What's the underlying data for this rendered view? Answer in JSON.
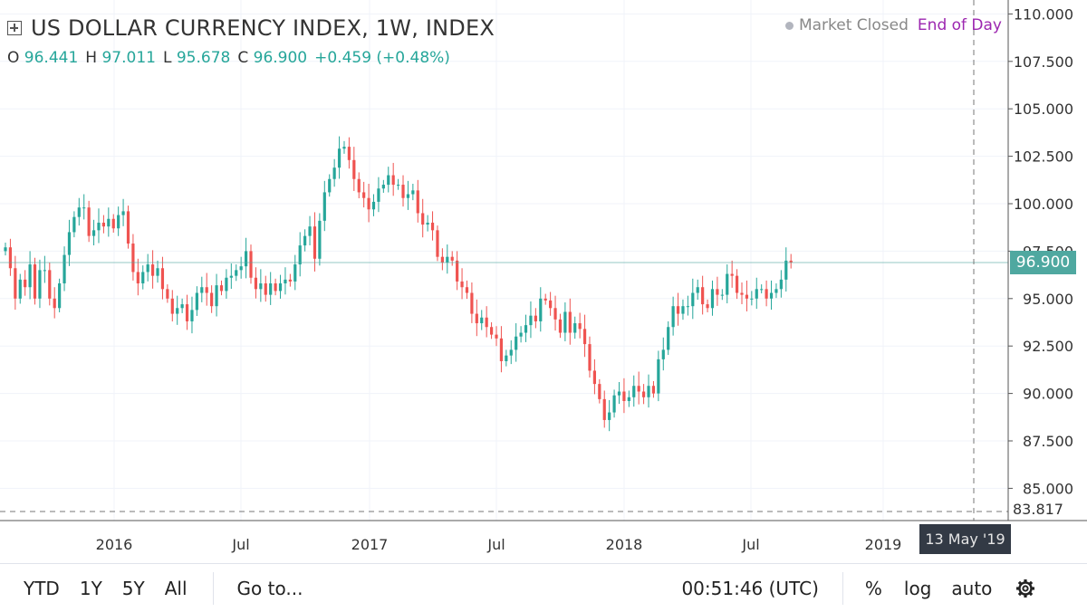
{
  "header": {
    "title": "US DOLLAR CURRENCY INDEX, 1W, INDEX",
    "ohlc": {
      "o_label": "O",
      "o_value": "96.441",
      "h_label": "H",
      "h_value": "97.011",
      "l_label": "L",
      "l_value": "95.678",
      "c_label": "C",
      "c_value": "96.900",
      "change": "+0.459 (+0.48%)"
    },
    "status_closed": "Market Closed",
    "status_eod": "End of Day"
  },
  "price_axis": {
    "ticks": [
      "110.000",
      "107.500",
      "105.000",
      "102.500",
      "100.000",
      "97.500",
      "95.000",
      "92.500",
      "90.000",
      "87.500",
      "85.000"
    ],
    "current_price": "96.900",
    "low_marker": "83.817"
  },
  "time_axis": {
    "ticks": [
      "2016",
      "Jul",
      "2017",
      "Jul",
      "2018",
      "Jul",
      "2019"
    ],
    "crosshair_date": "13 May '19"
  },
  "toolbar": {
    "ranges": [
      "YTD",
      "1Y",
      "5Y",
      "All"
    ],
    "goto": "Go to...",
    "clock": "00:51:46 (UTC)",
    "percent": "%",
    "log": "log",
    "auto": "auto"
  },
  "colors": {
    "up": "#26a69a",
    "down": "#ef5350",
    "last_price": "#4fa8a0",
    "eod": "#9c27b0"
  },
  "chart_data": {
    "type": "candlestick",
    "title": "US DOLLAR CURRENCY INDEX, 1W, INDEX",
    "ylim": [
      83.817,
      110.0
    ],
    "y_ticks": [
      110,
      107.5,
      105,
      102.5,
      100,
      97.5,
      95,
      92.5,
      90,
      87.5,
      85
    ],
    "x_ticks": [
      "2016",
      "Jul",
      "2017",
      "Jul",
      "2018",
      "Jul",
      "2019"
    ],
    "last_close": 96.9,
    "closes": [
      97.7,
      96.6,
      95.0,
      96.0,
      95.6,
      96.8,
      95.0,
      96.5,
      96.5,
      95.0,
      94.5,
      95.8,
      97.3,
      98.5,
      99.3,
      99.8,
      99.8,
      98.3,
      98.6,
      99.0,
      98.8,
      99.2,
      98.7,
      99.4,
      99.6,
      97.9,
      96.4,
      95.8,
      96.4,
      96.8,
      96.2,
      96.6,
      95.5,
      95.0,
      94.2,
      94.5,
      94.7,
      93.8,
      94.4,
      95.3,
      95.6,
      95.3,
      94.6,
      95.7,
      95.4,
      96.1,
      96.2,
      96.5,
      96.7,
      97.5,
      96.1,
      95.5,
      95.8,
      95.2,
      95.8,
      95.4,
      95.8,
      96.0,
      95.9,
      96.8,
      97.8,
      98.3,
      98.8,
      97.1,
      99.1,
      100.6,
      101.3,
      101.9,
      102.9,
      103.0,
      102.3,
      101.3,
      100.6,
      100.3,
      99.7,
      100.1,
      100.8,
      101.0,
      101.5,
      101.0,
      101.0,
      100.3,
      100.5,
      100.7,
      99.5,
      98.9,
      99.0,
      98.6,
      97.2,
      96.9,
      97.2,
      97.0,
      95.9,
      95.6,
      95.3,
      94.2,
      93.7,
      94.0,
      93.5,
      93.1,
      92.9,
      91.7,
      92.0,
      92.3,
      93.0,
      93.2,
      93.6,
      94.1,
      93.8,
      95.0,
      94.9,
      94.5,
      93.9,
      93.2,
      94.3,
      93.2,
      93.7,
      93.4,
      92.6,
      91.2,
      90.5,
      89.7,
      88.6,
      89.0,
      89.9,
      90.1,
      89.6,
      89.8,
      90.4,
      90.1,
      89.8,
      90.4,
      90.0,
      91.8,
      92.3,
      93.5,
      94.6,
      94.2,
      94.6,
      94.6,
      95.3,
      95.6,
      94.7,
      94.5,
      95.5,
      95.2,
      95.2,
      96.3,
      96.2,
      95.3,
      95.2,
      95.0,
      95.0,
      95.5,
      95.5,
      95.0,
      95.3,
      95.5,
      96.0,
      97.0,
      96.9
    ]
  }
}
